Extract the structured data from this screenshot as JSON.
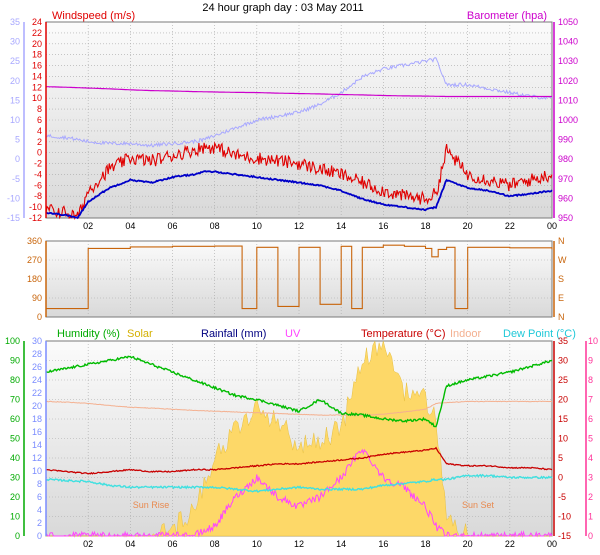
{
  "title": "24 hour graph day : 03 May 2011",
  "colors": {
    "windspeed": "#e00000",
    "wind_avg": "#0000c8",
    "temp_aux": "#a8a8ff",
    "barometer": "#cc00cc",
    "wind_dir": "#c8640a",
    "humidity": "#00bb00",
    "solar": "#fdd868",
    "rainfall": "#000080",
    "uv": "#ff44ff",
    "temperature": "#c80000",
    "indoor": "#f4b090",
    "dew_point": "#40e0e0",
    "humidity_axis": "#00aa00",
    "rain_axis": "#7a8cff",
    "temp_axis": "#c80000",
    "uv_axis": "#ff3399"
  },
  "panels": {
    "wind": {
      "left_label": "Windspeed (m/s)",
      "right_label": "Barometer (hpa)",
      "left_outer_ticks": [
        "35",
        "30",
        "25",
        "20",
        "15",
        "10",
        "5",
        "0",
        "-5",
        "-10",
        "-15"
      ],
      "left_inner_ticks": [
        "24",
        "22",
        "20",
        "18",
        "16",
        "14",
        "12",
        "10",
        "8",
        "6",
        "4",
        "2",
        "0",
        "-2",
        "-4",
        "-6",
        "-8",
        "-10",
        "-12"
      ],
      "right_ticks": [
        "1050",
        "1040",
        "1030",
        "1020",
        "1010",
        "1000",
        "990",
        "980",
        "970",
        "960",
        "950"
      ]
    },
    "direction": {
      "left_ticks": [
        "360",
        "270",
        "180",
        "90",
        "0"
      ],
      "right_ticks": [
        "N",
        "W",
        "S",
        "E",
        "N"
      ]
    },
    "weather": {
      "header": {
        "humidity": "Humidity (%)",
        "solar": "Solar",
        "rainfall": "Rainfall (mm)",
        "uv": "UV",
        "temperature": "Temperature (°C)",
        "indoor": "Indoor",
        "dew_point": "Dew Point (°C)"
      },
      "humidity_ticks": [
        "100",
        "90",
        "80",
        "70",
        "60",
        "50",
        "40",
        "30",
        "20",
        "10",
        "0"
      ],
      "rain_ticks": [
        "30",
        "28",
        "26",
        "24",
        "22",
        "20",
        "18",
        "16",
        "14",
        "12",
        "10",
        "8",
        "6",
        "4",
        "2",
        "0"
      ],
      "temp_ticks": [
        "35",
        "30",
        "25",
        "20",
        "15",
        "10",
        "5",
        "0",
        "-5",
        "-10",
        "-15"
      ],
      "uv_ticks": [
        "10",
        "9",
        "8",
        "7",
        "6",
        "5",
        "4",
        "3",
        "2",
        "1",
        "0"
      ],
      "sun_rise": "Sun Rise",
      "sun_set": "Sun Set"
    }
  },
  "x_ticks": [
    "02",
    "04",
    "06",
    "08",
    "10",
    "12",
    "14",
    "16",
    "18",
    "20",
    "22",
    "00"
  ],
  "chart_data": [
    {
      "type": "line",
      "title": "24 hour graph day : 03 May 2011",
      "ylabel": "Windspeed (m/s)",
      "y2label": "Barometer (hpa)",
      "ylim": [
        -12,
        24
      ],
      "y2lim": [
        950,
        1050
      ],
      "x_hours": [
        0,
        1,
        1.5,
        2,
        3,
        4,
        5,
        6,
        7,
        7.5,
        8,
        9,
        10,
        11,
        12,
        13,
        14,
        15,
        16,
        17,
        18,
        18.5,
        19,
        20,
        21,
        22,
        23,
        24
      ],
      "series": [
        {
          "name": "Windspeed (m/s)",
          "values": [
            -10.5,
            -11,
            -12,
            -7,
            -3,
            -1,
            -1.5,
            -0.5,
            0.5,
            1,
            1,
            -0.5,
            -1,
            -1.5,
            -2,
            -3,
            -4,
            -5.5,
            -7,
            -8,
            -8.5,
            -7.5,
            0.5,
            -4,
            -5,
            -6,
            -5,
            -4
          ]
        },
        {
          "name": "Average windspeed",
          "values": [
            -11,
            -11.5,
            -12,
            -9,
            -6.5,
            -5,
            -5.5,
            -4.5,
            -4,
            -3.5,
            -3.5,
            -4,
            -4.5,
            -5,
            -5.5,
            -6,
            -7,
            -8.5,
            -9.5,
            -10,
            -10.5,
            -10,
            -5,
            -6.5,
            -7,
            -8,
            -7.5,
            -7
          ]
        },
        {
          "name": "Barometer (hpa)",
          "values": [
            1017,
            1016.7,
            1016.5,
            1016.3,
            1015.9,
            1015.4,
            1015,
            1014.8,
            1014.5,
            1014.4,
            1014.3,
            1014.1,
            1014,
            1013.7,
            1013.5,
            1013.3,
            1013,
            1012.8,
            1012.5,
            1012.3,
            1012.2,
            1012.1,
            1012,
            1012,
            1012,
            1012,
            1012,
            1012
          ]
        },
        {
          "name": "Temperature (scaled, °C)",
          "values": [
            6,
            5.5,
            5,
            4.5,
            4,
            4,
            3.5,
            4,
            4.5,
            5,
            6,
            8,
            10,
            11,
            12,
            14,
            17,
            21,
            23,
            24,
            25,
            25.5,
            19,
            19,
            18,
            17,
            16,
            15.5
          ]
        }
      ]
    },
    {
      "type": "line",
      "ylabel": "Wind Direction",
      "ylim": [
        0,
        360
      ],
      "x_hours": [
        0,
        1,
        1.5,
        2,
        4,
        6,
        8,
        9,
        9.3,
        10,
        11,
        12,
        13,
        14,
        14.5,
        15,
        16,
        17,
        18,
        18.3,
        18.6,
        19,
        19.4,
        20,
        22,
        24
      ],
      "series": [
        {
          "name": "Wind Direction",
          "values": [
            40,
            40,
            40,
            325,
            332,
            335,
            336,
            336,
            40,
            330,
            50,
            330,
            60,
            335,
            40,
            330,
            340,
            335,
            325,
            285,
            320,
            330,
            40,
            330,
            328,
            320
          ]
        }
      ]
    },
    {
      "type": "line",
      "ylabel": "Temperature (°C)",
      "ylim": [
        -15,
        35
      ],
      "x_hours": [
        0,
        1,
        2,
        3,
        4,
        5,
        6,
        7,
        8,
        9,
        10,
        11,
        12,
        13,
        14,
        15,
        16,
        17,
        18,
        18.5,
        19,
        20,
        21,
        22,
        23,
        24
      ],
      "series": [
        {
          "name": "Humidity (%)",
          "values": [
            84,
            86,
            88,
            90,
            92,
            88,
            84,
            80,
            76,
            72,
            70,
            67,
            64,
            70,
            63,
            62,
            60,
            59,
            60,
            56,
            77,
            80,
            82,
            84,
            87,
            90
          ]
        },
        {
          "name": "Temperature (°C)",
          "values": [
            2,
            1.5,
            1,
            1.5,
            2,
            1.5,
            1.5,
            2,
            2,
            2.5,
            3,
            3.5,
            3.5,
            4,
            4.5,
            5,
            6,
            6.5,
            7,
            7.5,
            3.5,
            3,
            3,
            2.5,
            2.5,
            2
          ]
        },
        {
          "name": "Dew Point (°C)",
          "values": [
            -0.5,
            -0.8,
            -1,
            -2,
            -2.5,
            -2.5,
            -2.5,
            -2.5,
            -2.5,
            -3,
            -3.5,
            -3,
            -2.5,
            -3,
            -3,
            -3,
            -2,
            -1.5,
            -1,
            -0.5,
            -0.5,
            0.5,
            0.5,
            0,
            0,
            0
          ]
        },
        {
          "name": "Indoor (°C)",
          "values": [
            19.5,
            19.3,
            19,
            18.5,
            18,
            17.8,
            17.5,
            17.2,
            17,
            16.8,
            16.6,
            16.4,
            16.2,
            16,
            16,
            16,
            16.2,
            16.8,
            17.5,
            19,
            19.2,
            19.5,
            19.5,
            19.5,
            19.5,
            19.5
          ]
        },
        {
          "name": "Solar",
          "values": [
            0,
            0,
            0,
            0,
            0,
            0,
            0.3,
            1.5,
            4,
            5.5,
            6.5,
            6,
            4.5,
            5,
            5.5,
            9,
            10,
            7.5,
            7,
            6,
            1,
            0,
            0,
            0,
            0,
            0
          ]
        },
        {
          "name": "UV",
          "values": [
            0,
            0,
            0,
            0,
            0,
            0,
            0,
            0,
            0.5,
            2,
            3,
            2,
            1.5,
            2,
            3,
            4.5,
            3,
            2.5,
            1.5,
            0.5,
            0,
            0,
            0,
            0,
            0,
            0
          ]
        }
      ]
    }
  ]
}
